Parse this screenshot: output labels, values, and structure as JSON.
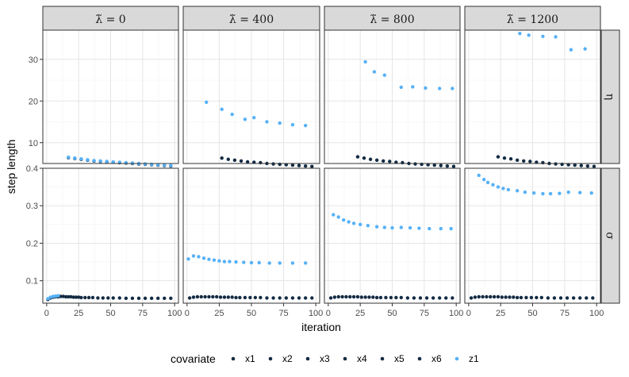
{
  "chart_data": {
    "type": "scatter",
    "xlabel": "iteration",
    "ylabel": "step length",
    "facet_cols": [
      {
        "prefix": "λ̃ = ",
        "value": "0"
      },
      {
        "prefix": "λ̃ = ",
        "value": "400"
      },
      {
        "prefix": "λ̃ = ",
        "value": "800"
      },
      {
        "prefix": "λ̃ = ",
        "value": "1200"
      }
    ],
    "facet_rows": [
      {
        "label": "η",
        "ylim": [
          5,
          37
        ],
        "yticks": [
          10,
          20,
          30
        ]
      },
      {
        "label": "σ",
        "ylim": [
          0.04,
          0.4
        ],
        "yticks": [
          0.1,
          0.2,
          0.3,
          0.4
        ]
      }
    ],
    "xlim": [
      -3,
      103
    ],
    "xticks": [
      0,
      25,
      50,
      75,
      100
    ],
    "grid": true,
    "legend": {
      "title": "covariate",
      "position": "bottom",
      "items": [
        {
          "name": "x1",
          "color": "#132b43"
        },
        {
          "name": "x2",
          "color": "#132b43"
        },
        {
          "name": "x3",
          "color": "#132b43"
        },
        {
          "name": "x4",
          "color": "#132b43"
        },
        {
          "name": "x5",
          "color": "#132b43"
        },
        {
          "name": "x6",
          "color": "#132b43"
        },
        {
          "name": "z1",
          "color": "#56b1f7"
        }
      ]
    },
    "colors": {
      "x": "#132b43",
      "z1": "#56b1f7"
    },
    "panels": [
      {
        "row": 0,
        "col": 0,
        "x": [
          [
            17,
            6.4
          ],
          [
            22,
            6.2
          ],
          [
            27,
            6.0
          ],
          [
            32,
            5.8
          ],
          [
            37,
            5.6
          ],
          [
            42,
            5.5
          ],
          [
            47,
            5.4
          ],
          [
            52,
            5.3
          ],
          [
            57,
            5.2
          ],
          [
            62,
            5.1
          ],
          [
            67,
            5.0
          ],
          [
            72,
            4.9
          ],
          [
            77,
            4.8
          ],
          [
            82,
            4.7
          ],
          [
            87,
            4.6
          ],
          [
            92,
            4.5
          ],
          [
            97,
            4.4
          ]
        ],
        "z1": [
          [
            17,
            6.5
          ],
          [
            22,
            6.3
          ],
          [
            27,
            6.1
          ],
          [
            32,
            5.9
          ],
          [
            37,
            5.7
          ],
          [
            42,
            5.6
          ],
          [
            47,
            5.5
          ],
          [
            52,
            5.4
          ],
          [
            57,
            5.3
          ],
          [
            62,
            5.2
          ],
          [
            67,
            5.1
          ],
          [
            72,
            5.0
          ],
          [
            77,
            4.9
          ],
          [
            82,
            4.8
          ],
          [
            87,
            4.7
          ],
          [
            92,
            4.6
          ],
          [
            97,
            4.5
          ]
        ]
      },
      {
        "row": 0,
        "col": 1,
        "x": [
          [
            27,
            6.3
          ],
          [
            32,
            6.0
          ],
          [
            37,
            5.8
          ],
          [
            42,
            5.6
          ],
          [
            47,
            5.4
          ],
          [
            52,
            5.3
          ],
          [
            57,
            5.2
          ],
          [
            62,
            5.0
          ],
          [
            67,
            4.9
          ],
          [
            72,
            4.8
          ],
          [
            77,
            4.7
          ],
          [
            82,
            4.6
          ],
          [
            87,
            4.5
          ],
          [
            92,
            4.4
          ],
          [
            97,
            4.3
          ]
        ],
        "z1": [
          [
            15,
            19.7
          ],
          [
            27,
            18.0
          ],
          [
            35,
            16.8
          ],
          [
            45,
            15.6
          ],
          [
            52,
            16.0
          ],
          [
            62,
            15.0
          ],
          [
            72,
            14.7
          ],
          [
            82,
            14.3
          ],
          [
            92,
            14.1
          ]
        ]
      },
      {
        "row": 0,
        "col": 2,
        "x": [
          [
            23,
            6.6
          ],
          [
            28,
            6.3
          ],
          [
            33,
            6.0
          ],
          [
            38,
            5.8
          ],
          [
            43,
            5.6
          ],
          [
            48,
            5.5
          ],
          [
            53,
            5.3
          ],
          [
            58,
            5.2
          ],
          [
            63,
            5.0
          ],
          [
            68,
            4.9
          ],
          [
            73,
            4.8
          ],
          [
            78,
            4.7
          ],
          [
            83,
            4.6
          ],
          [
            88,
            4.5
          ],
          [
            93,
            4.4
          ],
          [
            98,
            4.3
          ]
        ],
        "z1": [
          [
            29,
            29.4
          ],
          [
            36,
            27.0
          ],
          [
            44,
            26.2
          ],
          [
            57,
            23.3
          ],
          [
            66,
            23.4
          ],
          [
            76,
            23.1
          ],
          [
            87,
            23.0
          ],
          [
            97,
            23.0
          ]
        ]
      },
      {
        "row": 0,
        "col": 3,
        "x": [
          [
            23,
            6.6
          ],
          [
            28,
            6.3
          ],
          [
            33,
            6.1
          ],
          [
            38,
            5.8
          ],
          [
            43,
            5.6
          ],
          [
            48,
            5.5
          ],
          [
            53,
            5.3
          ],
          [
            58,
            5.2
          ],
          [
            63,
            5.0
          ],
          [
            68,
            4.9
          ],
          [
            73,
            4.8
          ],
          [
            78,
            4.7
          ],
          [
            83,
            4.6
          ],
          [
            88,
            4.5
          ],
          [
            93,
            4.4
          ],
          [
            98,
            4.3
          ]
        ],
        "z1": [
          [
            40,
            36.2
          ],
          [
            47,
            35.8
          ],
          [
            58,
            35.5
          ],
          [
            68,
            35.4
          ],
          [
            80,
            32.3
          ],
          [
            91,
            32.5
          ]
        ]
      },
      {
        "row": 1,
        "col": 0,
        "x": [
          [
            1,
            0.05
          ],
          [
            3,
            0.054
          ],
          [
            5,
            0.056
          ],
          [
            7,
            0.057
          ],
          [
            9,
            0.057
          ],
          [
            11,
            0.058
          ],
          [
            13,
            0.058
          ],
          [
            15,
            0.057
          ],
          [
            17,
            0.057
          ],
          [
            19,
            0.057
          ],
          [
            21,
            0.056
          ],
          [
            23,
            0.056
          ],
          [
            25,
            0.056
          ],
          [
            27,
            0.055
          ],
          [
            30,
            0.055
          ],
          [
            33,
            0.055
          ],
          [
            36,
            0.055
          ],
          [
            40,
            0.054
          ],
          [
            44,
            0.054
          ],
          [
            48,
            0.054
          ],
          [
            52,
            0.054
          ],
          [
            57,
            0.054
          ],
          [
            62,
            0.053
          ],
          [
            67,
            0.053
          ],
          [
            72,
            0.053
          ],
          [
            77,
            0.053
          ],
          [
            82,
            0.053
          ],
          [
            87,
            0.053
          ],
          [
            92,
            0.053
          ],
          [
            97,
            0.053
          ]
        ],
        "z1": [
          [
            1,
            0.052
          ],
          [
            3,
            0.056
          ],
          [
            5,
            0.058
          ],
          [
            7,
            0.059
          ],
          [
            9,
            0.06
          ]
        ]
      },
      {
        "row": 1,
        "col": 1,
        "x": [
          [
            2,
            0.054
          ],
          [
            5,
            0.056
          ],
          [
            8,
            0.057
          ],
          [
            11,
            0.057
          ],
          [
            14,
            0.057
          ],
          [
            17,
            0.057
          ],
          [
            20,
            0.057
          ],
          [
            23,
            0.057
          ],
          [
            26,
            0.056
          ],
          [
            29,
            0.056
          ],
          [
            32,
            0.056
          ],
          [
            35,
            0.056
          ],
          [
            38,
            0.055
          ],
          [
            41,
            0.055
          ],
          [
            45,
            0.055
          ],
          [
            49,
            0.055
          ],
          [
            53,
            0.055
          ],
          [
            57,
            0.055
          ],
          [
            62,
            0.054
          ],
          [
            67,
            0.054
          ],
          [
            72,
            0.054
          ],
          [
            77,
            0.054
          ],
          [
            82,
            0.054
          ],
          [
            87,
            0.054
          ],
          [
            92,
            0.054
          ],
          [
            97,
            0.054
          ]
        ],
        "z1": [
          [
            1,
            0.158
          ],
          [
            5,
            0.166
          ],
          [
            9,
            0.164
          ],
          [
            13,
            0.16
          ],
          [
            17,
            0.157
          ],
          [
            21,
            0.155
          ],
          [
            25,
            0.153
          ],
          [
            29,
            0.151
          ],
          [
            33,
            0.151
          ],
          [
            38,
            0.15
          ],
          [
            44,
            0.149
          ],
          [
            50,
            0.148
          ],
          [
            56,
            0.148
          ],
          [
            64,
            0.147
          ],
          [
            72,
            0.147
          ],
          [
            82,
            0.147
          ],
          [
            92,
            0.147
          ]
        ]
      },
      {
        "row": 1,
        "col": 2,
        "x": [
          [
            2,
            0.054
          ],
          [
            5,
            0.056
          ],
          [
            8,
            0.057
          ],
          [
            11,
            0.057
          ],
          [
            14,
            0.057
          ],
          [
            17,
            0.057
          ],
          [
            20,
            0.057
          ],
          [
            23,
            0.057
          ],
          [
            26,
            0.056
          ],
          [
            29,
            0.056
          ],
          [
            32,
            0.056
          ],
          [
            35,
            0.056
          ],
          [
            38,
            0.055
          ],
          [
            41,
            0.055
          ],
          [
            45,
            0.055
          ],
          [
            49,
            0.055
          ],
          [
            53,
            0.055
          ],
          [
            57,
            0.055
          ],
          [
            62,
            0.054
          ],
          [
            67,
            0.054
          ],
          [
            72,
            0.054
          ],
          [
            77,
            0.054
          ],
          [
            82,
            0.054
          ],
          [
            87,
            0.054
          ],
          [
            92,
            0.054
          ],
          [
            97,
            0.054
          ]
        ],
        "z1": [
          [
            4,
            0.276
          ],
          [
            8,
            0.27
          ],
          [
            12,
            0.262
          ],
          [
            16,
            0.257
          ],
          [
            20,
            0.253
          ],
          [
            25,
            0.25
          ],
          [
            31,
            0.247
          ],
          [
            38,
            0.244
          ],
          [
            44,
            0.242
          ],
          [
            50,
            0.241
          ],
          [
            57,
            0.242
          ],
          [
            64,
            0.241
          ],
          [
            71,
            0.24
          ],
          [
            79,
            0.239
          ],
          [
            88,
            0.239
          ],
          [
            96,
            0.239
          ]
        ]
      },
      {
        "row": 1,
        "col": 3,
        "x": [
          [
            2,
            0.054
          ],
          [
            5,
            0.056
          ],
          [
            8,
            0.057
          ],
          [
            11,
            0.057
          ],
          [
            14,
            0.057
          ],
          [
            17,
            0.057
          ],
          [
            20,
            0.057
          ],
          [
            23,
            0.057
          ],
          [
            26,
            0.056
          ],
          [
            29,
            0.056
          ],
          [
            32,
            0.056
          ],
          [
            35,
            0.056
          ],
          [
            38,
            0.055
          ],
          [
            41,
            0.055
          ],
          [
            45,
            0.055
          ],
          [
            49,
            0.055
          ],
          [
            53,
            0.055
          ],
          [
            57,
            0.055
          ],
          [
            62,
            0.054
          ],
          [
            67,
            0.054
          ],
          [
            72,
            0.054
          ],
          [
            77,
            0.054
          ],
          [
            82,
            0.054
          ],
          [
            87,
            0.054
          ],
          [
            92,
            0.054
          ],
          [
            97,
            0.054
          ]
        ],
        "z1": [
          [
            8,
            0.381
          ],
          [
            12,
            0.37
          ],
          [
            15,
            0.362
          ],
          [
            19,
            0.356
          ],
          [
            23,
            0.35
          ],
          [
            27,
            0.346
          ],
          [
            31,
            0.343
          ],
          [
            38,
            0.34
          ],
          [
            44,
            0.336
          ],
          [
            51,
            0.334
          ],
          [
            58,
            0.332
          ],
          [
            64,
            0.332
          ],
          [
            71,
            0.333
          ],
          [
            78,
            0.336
          ],
          [
            87,
            0.335
          ],
          [
            96,
            0.334
          ]
        ]
      }
    ]
  }
}
